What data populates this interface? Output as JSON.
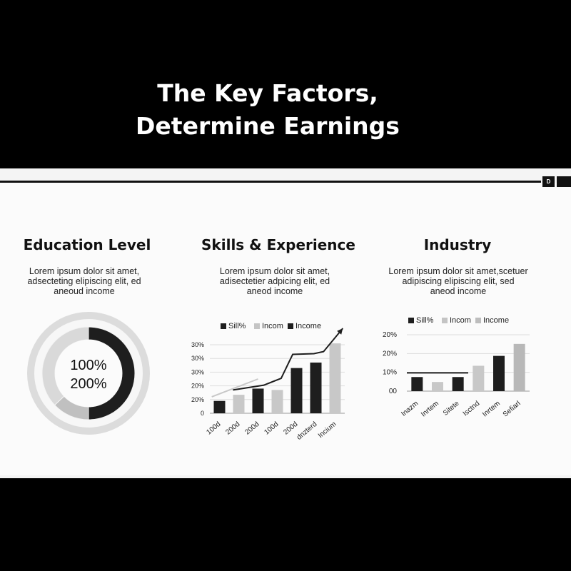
{
  "slide": {
    "title_lines": [
      "The Key Factors,",
      "Determine Earnings"
    ],
    "page_number": "D"
  },
  "cards": [
    {
      "title": "Education Level",
      "text_lines": [
        "Lorem ipsum dolor sit amet,",
        "adsecteting elipiscing elit, ed",
        "aneoud income"
      ]
    },
    {
      "title": "Skills & Experience",
      "text_lines": [
        "Lorem ipsum dolor sit amet,",
        "adisectetier adpicing elit, ed",
        "aneod income"
      ]
    },
    {
      "title": "Industry",
      "text_lines": [
        "Lorem ipsum dolor sit amet,scetuer",
        "adipiscing elipiscing elit, sed",
        "aneod income"
      ]
    }
  ],
  "colors": {
    "dark": "#1e1e1e",
    "mid": "#bdbdbd",
    "light": "#d6d6d6"
  },
  "chart_data": [
    {
      "type": "pie",
      "center_labels": [
        "100%",
        "200%"
      ],
      "slices": [
        {
          "value": 50,
          "color": "#1e1e1e"
        },
        {
          "value": 13,
          "color": "#c0c0c0"
        },
        {
          "value": 37,
          "color": "#d9d9d9"
        }
      ]
    },
    {
      "type": "bar",
      "legend": [
        "Sill%",
        "Incom",
        "Income"
      ],
      "legend_colors": [
        "#1e1e1e",
        "#c4c4c4",
        "#1e1e1e"
      ],
      "categories": [
        "100d",
        "200d",
        "200d",
        "100d",
        "200d",
        "dnzterd",
        "Incium"
      ],
      "values": [
        1.8,
        2.7,
        3.6,
        3.4,
        6.6,
        7.4,
        10.2
      ],
      "bar_colors": [
        "#1e1e1e",
        "#c8c8c8",
        "#1e1e1e",
        "#c8c8c8",
        "#1e1e1e",
        "#1e1e1e",
        "#c8c8c8"
      ],
      "ytick_labels": [
        "0",
        "20%",
        "20%",
        "30%",
        "30%",
        "30%"
      ],
      "ylim": [
        0,
        10
      ],
      "trend_light": [
        [
          -0.4,
          2.4
        ],
        [
          2.0,
          5.0
        ]
      ],
      "trend_dark": [
        [
          0.7,
          3.4
        ],
        [
          2.3,
          4.1
        ],
        [
          3.2,
          5.1
        ],
        [
          3.8,
          8.6
        ],
        [
          4.9,
          8.7
        ],
        [
          5.4,
          9.0
        ],
        [
          6.4,
          12.4
        ]
      ],
      "grid": true
    },
    {
      "type": "bar",
      "legend": [
        "Sill%",
        "Incom",
        "Income"
      ],
      "legend_colors": [
        "#1e1e1e",
        "#c4c4c4",
        "#bdbdbd"
      ],
      "categories": [
        "Inazm",
        "Inrtem",
        "Sitete",
        "Isctnd",
        "Inrtem",
        "Sefiarl"
      ],
      "values": [
        10,
        6.5,
        10,
        18,
        25,
        33.5
      ],
      "bar_colors": [
        "#1e1e1e",
        "#c8c8c8",
        "#1e1e1e",
        "#c8c8c8",
        "#1e1e1e",
        "#b8b8b8"
      ],
      "ytick_labels": [
        "00",
        "10%",
        "20%",
        "20%"
      ],
      "ylim": [
        0,
        40
      ],
      "reference_line": {
        "y": 13,
        "x_from": -0.5,
        "x_to": 2.5
      },
      "grid": true
    }
  ]
}
